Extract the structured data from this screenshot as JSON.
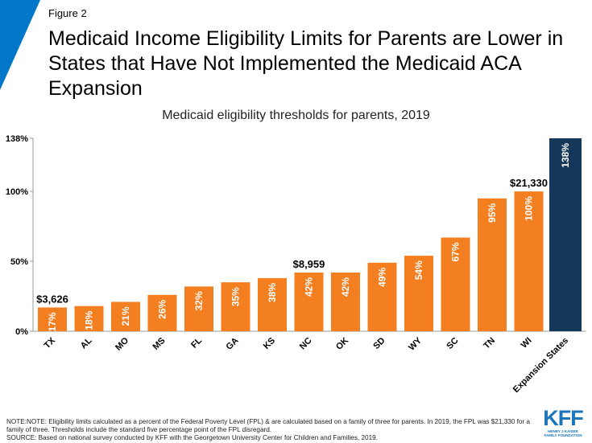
{
  "figure_label": "Figure 2",
  "title": "Medicaid Income Eligibility Limits for Parents are Lower in States that Have Not Implemented the Medicaid ACA Expansion",
  "colors": {
    "accent": "#0077c8",
    "bar": "#f47f20",
    "expansion": "#15385a",
    "axis": "#999999"
  },
  "chart_data": {
    "type": "bar",
    "title": "Medicaid eligibility thresholds for parents, 2019",
    "xlabel": "",
    "ylabel": "",
    "categories": [
      "TX",
      "AL",
      "MO",
      "MS",
      "FL",
      "GA",
      "KS",
      "NC",
      "OK",
      "SD",
      "WY",
      "SC",
      "TN",
      "WI",
      "Expansion States"
    ],
    "values": [
      17,
      18,
      21,
      26,
      32,
      35,
      38,
      42,
      42,
      49,
      54,
      67,
      95,
      100,
      138
    ],
    "value_labels": [
      "17%",
      "18%",
      "21%",
      "26%",
      "32%",
      "35%",
      "38%",
      "42%",
      "42%",
      "49%",
      "54%",
      "67%",
      "95%",
      "100%",
      "138%"
    ],
    "ylim": [
      0,
      138
    ],
    "ytick_values": [
      0,
      50,
      100,
      138
    ],
    "ytick_labels": [
      "0%",
      "50%",
      "100%",
      "138%"
    ],
    "grid": false,
    "annotations": [
      {
        "category": "TX",
        "text": "$3,626"
      },
      {
        "category": "NC",
        "text": "$8,959"
      },
      {
        "category": "WI",
        "text": "$21,330"
      }
    ]
  },
  "footnote": {
    "note": "NOTE:NOTE:  Eligibility limits calculated as a percent of the Federal Poverty Level (FPL) & are calculated based on a family of three for parents. In 2019, the FPL was $21,330 for a family of three. Thresholds include the standard five percentage point of the FPL disregard.",
    "source": "SOURCE: Based on national survey conducted by KFF with the Georgetown University Center for Children and Families, 2019."
  },
  "logo": {
    "mark": "KFF",
    "line1": "HENRY J KAISER",
    "line2": "FAMILY FOUNDATION"
  }
}
